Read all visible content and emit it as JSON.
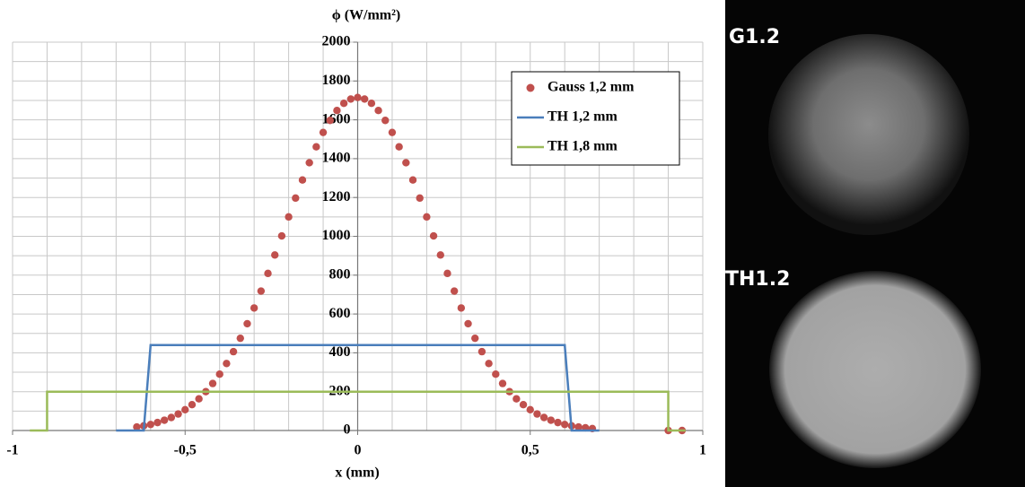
{
  "chart_data": {
    "type": "scatter-line",
    "title": "ϕ (W/mm²)",
    "x_label": "x (mm)",
    "xlim": [
      -1,
      1
    ],
    "ylim": [
      0,
      2000
    ],
    "xticks": [
      -1,
      {
        "value": -0.5,
        "label": "-0,5"
      },
      0,
      {
        "value": 0.5,
        "label": "0,5"
      },
      1
    ],
    "yticks": [
      0,
      200,
      400,
      600,
      800,
      1000,
      1200,
      1400,
      1600,
      1800,
      2000
    ],
    "grid": true,
    "xgrid_step": 0.1,
    "ygrid_step": 100,
    "legend": "upper right",
    "series": [
      {
        "name": "Gauss 1,2 mm",
        "color": "#c0504d",
        "mode": "markers",
        "x": [
          -0.64,
          -0.62,
          -0.6,
          -0.58,
          -0.56,
          -0.54,
          -0.52,
          -0.5,
          -0.48,
          -0.46,
          -0.44,
          -0.42,
          -0.4,
          -0.38,
          -0.36,
          -0.34,
          -0.32,
          -0.3,
          -0.28,
          -0.26,
          -0.24,
          -0.22,
          -0.2,
          -0.18,
          -0.16,
          -0.14,
          -0.12,
          -0.1,
          -0.08,
          -0.06,
          -0.04,
          -0.02,
          0,
          0.02,
          0.04,
          0.06,
          0.08,
          0.1,
          0.12,
          0.14,
          0.16,
          0.18,
          0.2,
          0.22,
          0.24,
          0.26,
          0.28,
          0.3,
          0.32,
          0.34,
          0.36,
          0.38,
          0.4,
          0.42,
          0.44,
          0.46,
          0.48,
          0.5,
          0.52,
          0.54,
          0.56,
          0.58,
          0.6,
          0.62,
          0.64,
          0.66,
          0.68,
          0.9,
          0.94
        ],
        "values": [
          18,
          24,
          31,
          41,
          53,
          67,
          85,
          107,
          133,
          163,
          200,
          242,
          290,
          345,
          406,
          475,
          550,
          631,
          718,
          809,
          904,
          1002,
          1100,
          1197,
          1290,
          1379,
          1461,
          1535,
          1597,
          1648,
          1685,
          1707,
          1715,
          1707,
          1685,
          1648,
          1597,
          1535,
          1461,
          1379,
          1290,
          1197,
          1100,
          1002,
          904,
          809,
          718,
          631,
          550,
          475,
          406,
          345,
          290,
          242,
          200,
          163,
          133,
          107,
          85,
          67,
          53,
          41,
          31,
          24,
          18,
          14,
          10,
          0,
          0
        ]
      },
      {
        "name": "TH 1,2 mm",
        "color": "#4a7ebb",
        "mode": "line",
        "x": [
          -0.7,
          -0.62,
          -0.6,
          0.6,
          0.62,
          0.7
        ],
        "values": [
          0,
          0,
          440,
          440,
          0,
          0
        ]
      },
      {
        "name": "TH 1,8 mm",
        "color": "#9bbb59",
        "mode": "line",
        "x": [
          -0.95,
          -0.9,
          -0.9,
          0.9,
          0.9,
          0.95
        ],
        "values": [
          0,
          0,
          200,
          200,
          0,
          0
        ]
      }
    ]
  },
  "image": {
    "labels": [
      "G1.2",
      "TH1.2"
    ]
  }
}
